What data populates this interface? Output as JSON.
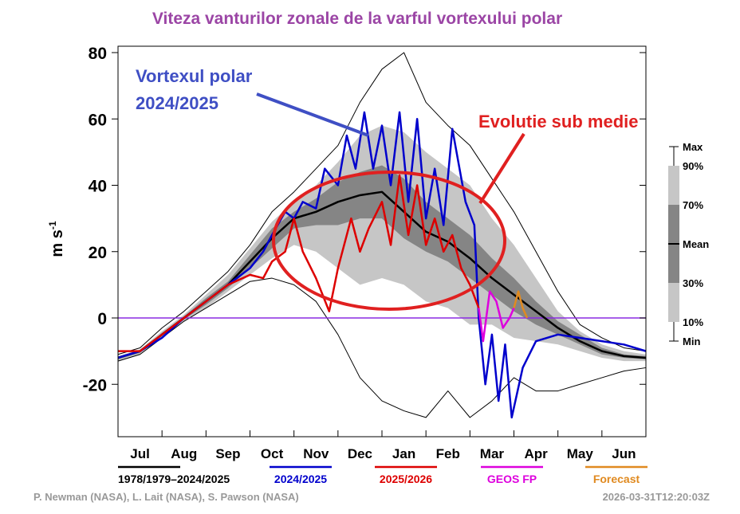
{
  "chart_data": {
    "type": "line",
    "title": "Viteza vanturilor zonale de la varful vortexului polar",
    "ylabel": "m s",
    "ylabel_sup": "-1",
    "ylim": [
      -36,
      82
    ],
    "yticks": [
      80,
      60,
      40,
      20,
      0,
      -20
    ],
    "months": [
      "Jul",
      "Aug",
      "Sep",
      "Oct",
      "Nov",
      "Dec",
      "Jan",
      "Feb",
      "Mar",
      "Apr",
      "May",
      "Jun"
    ],
    "x_months": [
      0,
      0.5,
      1,
      1.5,
      2,
      2.5,
      3,
      3.5,
      4,
      4.5,
      5,
      5.5,
      6,
      6.5,
      7,
      7.5,
      8,
      8.5,
      9,
      9.5,
      10,
      10.5,
      11,
      11.5,
      12
    ],
    "climatology": {
      "name": "1978/1979–2024/2025",
      "mean": [
        -12,
        -10,
        -5,
        0,
        5,
        10,
        17,
        24,
        30,
        32,
        35,
        37,
        38,
        32,
        26,
        23,
        18,
        12,
        7,
        2,
        -3,
        -7,
        -10,
        -11.5,
        -12
      ],
      "max": [
        -11,
        -9,
        -3,
        2,
        8,
        14,
        22,
        32,
        38,
        45,
        52,
        65,
        75,
        80,
        65,
        58,
        52,
        42,
        32,
        20,
        8,
        -2,
        -6,
        -9,
        -10
      ],
      "min": [
        -13,
        -11,
        -6,
        -1,
        3,
        7,
        11,
        12,
        10,
        5,
        -5,
        -18,
        -25,
        -28,
        -30,
        -22,
        -30,
        -25,
        -18,
        -22,
        -22,
        -20,
        -18,
        -16,
        -15
      ],
      "p90": [
        -11.5,
        -9.5,
        -4,
        1,
        7,
        13,
        21,
        29,
        35,
        40,
        47,
        55,
        58,
        56,
        50,
        45,
        40,
        30,
        22,
        12,
        2,
        -4,
        -8,
        -10,
        -11
      ],
      "p70": [
        -12,
        -10,
        -4.5,
        0.5,
        6,
        11,
        19,
        27,
        32,
        36,
        41,
        44,
        46,
        42,
        35,
        30,
        25,
        18,
        12,
        5,
        -1,
        -5,
        -9,
        -11,
        -11.5
      ],
      "p30": [
        -12.5,
        -10.5,
        -5.5,
        -0.5,
        4,
        9,
        15,
        21,
        27,
        28,
        28,
        30,
        30,
        24,
        20,
        17,
        12,
        7,
        2,
        -2,
        -5,
        -8,
        -11,
        -12,
        -12.5
      ],
      "p10": [
        -13,
        -11,
        -6,
        -1,
        3,
        8,
        13,
        18,
        22,
        20,
        15,
        10,
        12,
        10,
        5,
        3,
        -2,
        -2,
        -6,
        -7,
        -8,
        -10,
        -12,
        -13,
        -13
      ]
    },
    "series": [
      {
        "name": "2024/2025",
        "color": "#0000cc",
        "points": [
          [
            0,
            -12
          ],
          [
            0.5,
            -10
          ],
          [
            1,
            -6
          ],
          [
            1.5,
            0
          ],
          [
            2,
            5
          ],
          [
            2.5,
            10
          ],
          [
            3,
            15
          ],
          [
            3.3,
            20
          ],
          [
            3.5,
            25
          ],
          [
            3.8,
            32
          ],
          [
            4,
            30
          ],
          [
            4.2,
            35
          ],
          [
            4.5,
            33
          ],
          [
            4.7,
            45
          ],
          [
            5,
            40
          ],
          [
            5.2,
            55
          ],
          [
            5.4,
            45
          ],
          [
            5.6,
            62
          ],
          [
            5.8,
            45
          ],
          [
            6,
            58
          ],
          [
            6.2,
            40
          ],
          [
            6.4,
            62
          ],
          [
            6.6,
            35
          ],
          [
            6.8,
            60
          ],
          [
            7,
            30
          ],
          [
            7.2,
            45
          ],
          [
            7.4,
            28
          ],
          [
            7.6,
            57
          ],
          [
            7.9,
            35
          ],
          [
            8.1,
            28
          ],
          [
            8.2,
            0
          ],
          [
            8.35,
            -20
          ],
          [
            8.5,
            -5
          ],
          [
            8.65,
            -25
          ],
          [
            8.8,
            -8
          ],
          [
            8.95,
            -30
          ],
          [
            9.2,
            -15
          ],
          [
            9.5,
            -7
          ],
          [
            10,
            -5
          ],
          [
            10.5,
            -6
          ],
          [
            11,
            -7
          ],
          [
            11.5,
            -8
          ],
          [
            12,
            -10
          ]
        ]
      },
      {
        "name": "2025/2026",
        "color": "#dd0000",
        "points": [
          [
            0,
            -10
          ],
          [
            0.5,
            -10
          ],
          [
            1,
            -5
          ],
          [
            1.5,
            0
          ],
          [
            2,
            5
          ],
          [
            2.5,
            10
          ],
          [
            3,
            13
          ],
          [
            3.3,
            12
          ],
          [
            3.5,
            17
          ],
          [
            3.8,
            20
          ],
          [
            4,
            30
          ],
          [
            4.2,
            20
          ],
          [
            4.5,
            12
          ],
          [
            4.8,
            2
          ],
          [
            5,
            15
          ],
          [
            5.3,
            30
          ],
          [
            5.5,
            20
          ],
          [
            5.7,
            27
          ],
          [
            6,
            35
          ],
          [
            6.2,
            22
          ],
          [
            6.4,
            43
          ],
          [
            6.6,
            25
          ],
          [
            6.8,
            40
          ],
          [
            7,
            22
          ],
          [
            7.2,
            30
          ],
          [
            7.4,
            20
          ],
          [
            7.6,
            25
          ],
          [
            7.8,
            15
          ],
          [
            8,
            10
          ],
          [
            8.2,
            3
          ]
        ]
      },
      {
        "name": "GEOS FP",
        "color": "#dd00dd",
        "points": [
          [
            8.2,
            3
          ],
          [
            8.3,
            -7
          ],
          [
            8.45,
            8
          ],
          [
            8.6,
            5
          ],
          [
            8.75,
            -3
          ],
          [
            8.9,
            0
          ],
          [
            9.0,
            3
          ]
        ]
      },
      {
        "name": "Forecast",
        "color": "#e08a20",
        "points": [
          [
            9.0,
            3
          ],
          [
            9.1,
            8
          ],
          [
            9.2,
            3
          ],
          [
            9.3,
            0
          ]
        ]
      }
    ],
    "legend_box": [
      "Max",
      "90%",
      "70%",
      "Mean",
      "30%",
      "10%",
      "Min"
    ],
    "annotations": {
      "vortex": "Vortexul polar",
      "vortex_year": "2024/2025",
      "below": "Evolutie sub medie"
    },
    "credits": "P. Newman (NASA), L. Lait (NASA), S. Pawson (NASA)",
    "timestamp": "2026-03-31T12:20:03Z"
  }
}
